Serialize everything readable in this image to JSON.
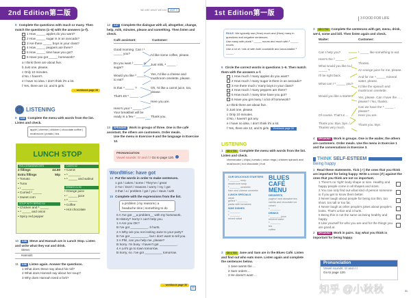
{
  "left": {
    "banner": "2nd Edition第二版",
    "running_head": "WE ARE WHAT WE EAT",
    "unit": "UNIT 3",
    "ex8": {
      "num": "8",
      "instr": "Complete the questions with much or many. Then match the questions (1–6) with the answers (a–f).",
      "questions": [
        "1  How _____ apples do you want?",
        "2  How _____ sugar is in an avocado?",
        "3  Are there _____ boys in your class?",
        "4  How _____ peppers are there?",
        "5  How _____ time have you got?",
        "6  Have you got _____ homework?"
      ],
      "answers": [
        "a  I think there are about five.",
        "b  Just one, please.",
        "c  Only 10 minutes.",
        "d  No, I haven't.",
        "e  I have no idea. I don't think it's a lot.",
        "f  Yes, there are 12, and 5 girls."
      ],
      "workbook": "→ workbook page 28"
    },
    "listening": {
      "title": "LISTENING",
      "icon": "headphones-icon"
    },
    "ex9": {
      "num": "9",
      "tag": "3.05",
      "instr": "Complete the menu with words from the list. Listen and check.",
      "words": "apple | cheese | chicken | chocolate coffee | mushroom | potato | tea"
    },
    "menu": {
      "title": "LUNCH STOP",
      "rolls_head": "ROLLS/SANDWICHES",
      "fillings2": "2 fillings",
      "price2": "£4.50",
      "extra": "Extra fillings",
      "priceExtra": "50p",
      "rolls": [
        "• Tomato",
        "• Tuna",
        "• ¹ _______",
        "• Curried ² _____",
        "• Sweet corn"
      ],
      "soup_head": "SOUP WITH BREAD  £4",
      "soup": [
        "• Chicken and ³ _____",
        "• ⁴ _____ and onion",
        "• Spicy red pepper"
      ],
      "cakes_head": "CAKES  £2",
      "cakes": [
        "• Carrot",
        "• ⁵ _______",
        "• ⁶ _____ and walnut"
      ],
      "drinks_head": "DRINKS  £1.50",
      "drinks": [
        "• Orange juice",
        "• ⁷ _____ juice",
        "• ⁸ _____",
        "• Coffee",
        "• Hot chocolate"
      ]
    },
    "ex10": {
      "num": "10",
      "tag": "3.06",
      "instr": "Steve and Hannah are in Lunch Stop. Listen and write what they eat and drink.",
      "steve": "Steve:",
      "hannah": "Hannah:"
    },
    "ex11": {
      "num": "11",
      "tag": "3.06",
      "instr": "Listen again. Answer the questions.",
      "items": [
        "1  What does Steve say about his roll?",
        "2  What does Hannah say about her soup?",
        "3  Why does Hannah need a fork?"
      ]
    },
    "ex12": {
      "num": "12",
      "tag": "3.07",
      "instr": "Complete the dialogue with all, altogether, change, help, milk, minutes, please and something. Then listen and check.",
      "col1": "Café assistant:",
      "col2": "Customer:",
      "assistant": [
        "Good morning. Can I ¹ _____ you?",
        "Do you want ² _____ or sugar?",
        "Would you like ³ _____ to eat?",
        "Is that ⁴ _____ ?",
        "That's £9 ⁵ _____ .",
        "Here's your ⁶ _____ . Your breakfast will be ready in a few ⁷ _____ ."
      ],
      "customer": [
        "I'd like some coffee, please.",
        "Just milk, ⁸ _____ .",
        "Yes, I'd like a cheese and mushroom omelette, please.",
        "Oh, I'd like a carrot juice, too, please.",
        "Here you are.",
        "Thank you."
      ]
    },
    "ex13": {
      "num": "13",
      "tag": "SPEAKING",
      "instr": "Work in groups of three. One is the café assistant, the others are customers. Order meals.",
      "sub": "Use the menu in Exercise 9 and the language in Exercise 12."
    },
    "pron": {
      "title": "PRONUNCIATION",
      "text": "Vowel sounds: /ɪ/ and /iː/",
      "goto": "Go to page 120."
    },
    "wordwise": {
      "title": "WordWise: have got",
      "ex14": {
        "num": "14",
        "instr": "Put the words in order to make sentences.",
        "items": [
          "1  got / cakes / some / They've / great",
          "2  I've / Don't / reasons / worry / my / got",
          "3  that / a / problem / got / you / Have / with"
        ]
      },
      "ex15": {
        "num": "15",
        "instr": "Complete with the expressions from the list.",
        "list": "a problem | my reasons | a headache  time | something to do",
        "items": [
          "0  A  I've got __a problem__ with my homework.",
          "    B  History? Sorry! I can't help you.",
          "1  A  Are you OK?",
          "    B  I've got __________. It hurts.",
          "2  A  Why are you not inviting Jane to your party?",
          "    B  I've got __________, but I don't want to tell you.",
          "3  A  Phil, can you help me, please?",
          "    B  Sorry. I'm busy. I haven't got __________.",
          "4  A  Let's go to town tomorrow.",
          "    B  Sorry, no. I've got __________ tomorrow."
        ]
      },
      "workbook": "→ workbook page 30"
    },
    "page_num": "33"
  },
  "right": {
    "banner": "1st Edition第一版",
    "running_head": "3  FOOD FOR LIFE",
    "rule": {
      "label": "RULE:",
      "lines": [
        "We typically use (How) much and (How) many in questions and negative sentences.",
        "Use many with plural ¹ _____ nouns and much with ² _____ nouns.",
        "Use a lot of / lots of with both countable and uncountable ³ _____ ."
      ]
    },
    "ex6": {
      "num": "6",
      "instr": "Circle the correct words in questions 1–6. Then match them with the answers a–f.",
      "questions": [
        "1  How much / many apples do you want?",
        "2  How much / many sugar is there in an avocado?",
        "3  Are there much / many boys in your class?",
        "4  How much / many peppers are there?",
        "5  How much / many time have you got?",
        "6  Have you got many / a lot of homework?"
      ],
      "answers": [
        "a  I think there are about five.",
        "b  Just one, please.",
        "c  Only 10 minutes.",
        "d  No, I haven't got any.",
        "e  I have no idea. I don't think it's a lot.",
        "f  Yes, there are 12, and 5 girls."
      ],
      "workbook": "Workbook page 28"
    },
    "listening": "LISTENING",
    "ex1": {
      "num": "1",
      "tag": "CD 1 T21",
      "instr": "Complete the menu with words from the list. Listen and check.",
      "words": "cheesecake | chips | tomato | onion rings | chicken  spinach and mushroom | hot chocolate | fruit"
    },
    "menu": {
      "title": "BLUES CAFÉ MENU",
      "starters": "OUR DELICIOUS STARTERS",
      "starters_items": [
        "¹ _______ soup",
        "mushroom soup",
        "² _______ omelette",
        "ham and cheese omelette"
      ],
      "lunch": "LUNCH SPECIALS",
      "lunch_items": [
        "steak",
        "grilled ³ _______",
        "pasta with tomatoes"
      ],
      "side": "SIDE DISHES",
      "side_items": [
        "⁴ _______",
        "⁵ _______",
        "mixed salad"
      ],
      "desserts": "DESSERTS",
      "desserts_items": [
        "yoghurt and strawberries",
        "vanilla and chocolate ice cream",
        "⁶ _______"
      ],
      "drinks": "DRINKS",
      "drinks_items": [
        "⁷ _______ juice",
        "mineral water",
        "⁸ _______",
        "tea",
        "coffee"
      ]
    },
    "ex2": {
      "num": "2",
      "tag": "CD 1 T22",
      "instr": "Jane and Sam are in the Blues Café. Listen and find out who eats more. Listen again and complete the sentences below.",
      "items": [
        "1  Jane wants the ...",
        "2  Sam orders ...",
        "3  He doesn't want ..."
      ]
    },
    "ex3": {
      "num": "3",
      "tag": "CD 1 T22",
      "instr": "Complete the sentences with get, menu, drink, we'd, some and bill. Then listen again and check.",
      "col1": "Waiter:",
      "col2": "Customer:",
      "waiter": [
        "Can I help you?",
        "Here's the ² _____ .",
        "What would you like to ³ _____ ?",
        "I'll be right back.",
        "What can I ⁵ _____ you?",
        "Would you like a starter?",
        "Of course. That's £ ...",
        "Thank you. Bye, bye. / Thanks very much."
      ],
      "customer": [
        "¹ _____ like something to eat.",
        "Thanks.",
        "An orange juice for me, please.",
        "And for me ⁴ _____ mineral water, please.",
        "I'd like the spinach and mushroom omelette.",
        "Yes, please. Can I have the ... , please? / No, thanks.",
        "Can we have the ⁶ _____ , please?",
        "Here you are.",
        "Thank you. Bye."
      ]
    },
    "ex4": {
      "num": "4",
      "tag": "SPEAKING",
      "instr": "Work in groups. One is the waiter, the others are customers. Order meals. Use the menu in Exercise 1 and the conversations in Exercise 3."
    },
    "think": {
      "title1": "THINK",
      "title2": "SELF-ESTEEM",
      "sub": "Being happy",
      "q1": {
        "num": "1",
        "instr": "Read these statements. Tick (✓) the ones that you think are important for being happy. Write a cross (✗) against the ones that you think are not so important.",
        "items": [
          "1  There's no 'right' body shape or size. Healthy and happy people come in all shapes and sizes.",
          "2  You can only find out what kind of person someone is if you get to know them better.",
          "3  Never laugh about people for being too thin, too short, too tall or too fat.",
          "4  Never laugh at other people's jokes about people's looks. That's unfair and it hurts.",
          "5  Being thin is not the same as being healthy and happy.",
          "6  Like yourself for who you are and for the things you are good at."
        ]
      },
      "q2": {
        "num": "2",
        "tag": "SPEAKING",
        "instr": "Work in pairs. Say what you think is important for being happy."
      }
    },
    "pron": {
      "title": "Pronunciation",
      "text": "Vowel sounds: /ɪ/ and /iː/",
      "goto": "Go to page 120."
    },
    "page_num": "31"
  },
  "watermark": "知乎 @小秋秋",
  "colors": {
    "banner": "#6a2a97",
    "accent_blue": "#3f6fb5",
    "lime": "#b8cf1b",
    "green": "#2c8a3c",
    "workbook_yellow": "#f5d415",
    "pron_pink": "#fbe2dc",
    "wordwise_bg": "#e4eaf5"
  }
}
